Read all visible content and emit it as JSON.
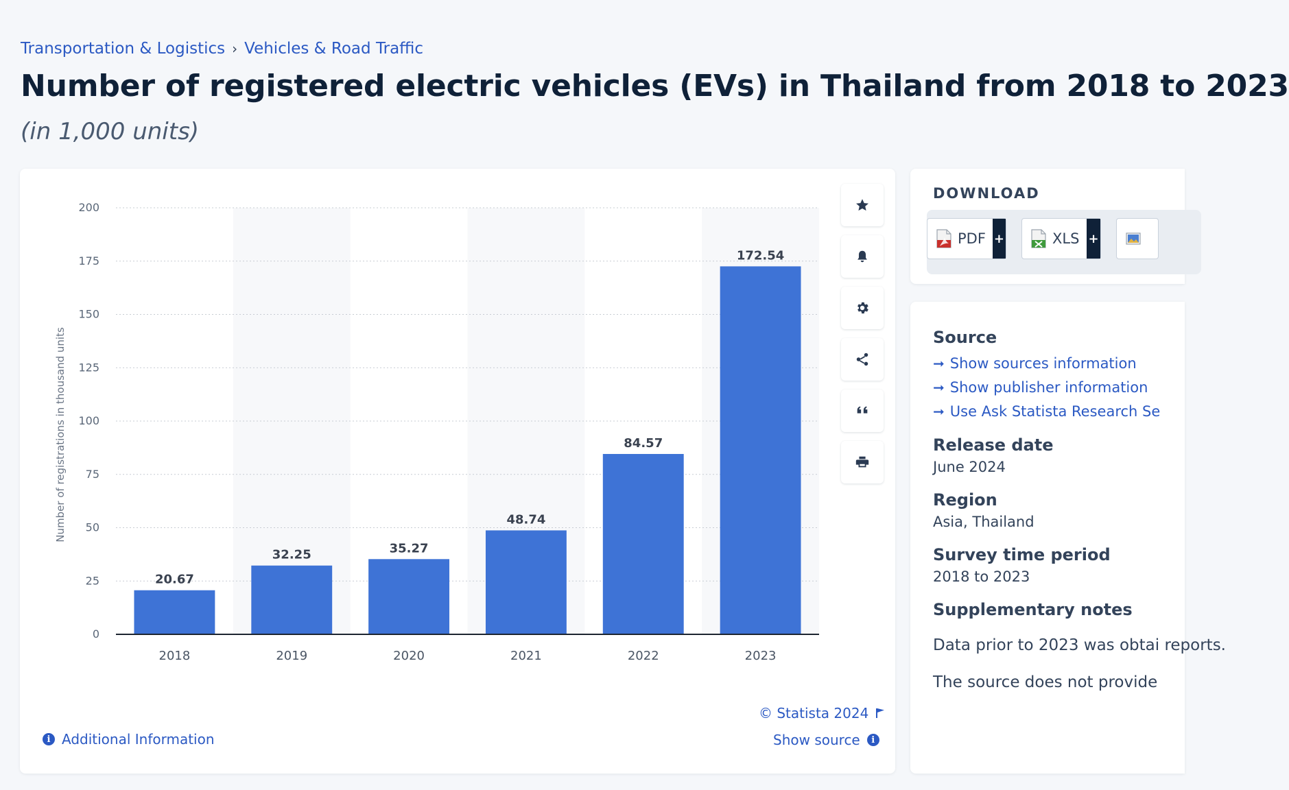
{
  "breadcrumb": {
    "items": [
      "Transportation & Logistics",
      "Vehicles & Road Traffic"
    ],
    "separator": "›"
  },
  "header": {
    "title": "Number of registered electric vehicles (EVs) in Thailand from 2018 to 2023",
    "subtitle": "(in 1,000 units)"
  },
  "chart_data": {
    "type": "bar",
    "categories": [
      "2018",
      "2019",
      "2020",
      "2021",
      "2022",
      "2023"
    ],
    "values": [
      20.67,
      32.25,
      35.27,
      48.74,
      84.57,
      172.54
    ],
    "value_labels": [
      "20.67",
      "32.25",
      "35.27",
      "48.74",
      "84.57",
      "172.54"
    ],
    "ylabel": "Number of registrations in thousand units",
    "xlabel": "",
    "ylim": [
      0,
      200
    ],
    "yticks": [
      0,
      25,
      50,
      75,
      100,
      125,
      150,
      175,
      200
    ],
    "grid": true,
    "bar_color": "#3e73d6"
  },
  "toolbar": {
    "icons": [
      "star-icon",
      "bell-icon",
      "gear-icon",
      "share-icon",
      "quote-icon",
      "print-icon"
    ]
  },
  "chart_footer": {
    "copyright": "© Statista 2024",
    "show_source": "Show source",
    "additional_info": "Additional Information"
  },
  "download": {
    "title": "DOWNLOAD",
    "pdf": "PDF",
    "xls": "XLS",
    "plus": "+"
  },
  "meta": {
    "source_heading": "Source",
    "source_links": [
      "Show sources information",
      "Show publisher information",
      "Use Ask Statista Research Se"
    ],
    "release_heading": "Release date",
    "release_value": "June 2024",
    "region_heading": "Region",
    "region_value": "Asia, Thailand",
    "survey_heading": "Survey time period",
    "survey_value": "2018 to 2023",
    "notes_heading": "Supplementary notes",
    "notes_p1": "Data prior to 2023 was obtai reports.",
    "notes_p2": "The source does not provide"
  },
  "colors": {
    "link": "#2b59c3",
    "bar": "#3e73d6",
    "text": "#0f2138"
  }
}
